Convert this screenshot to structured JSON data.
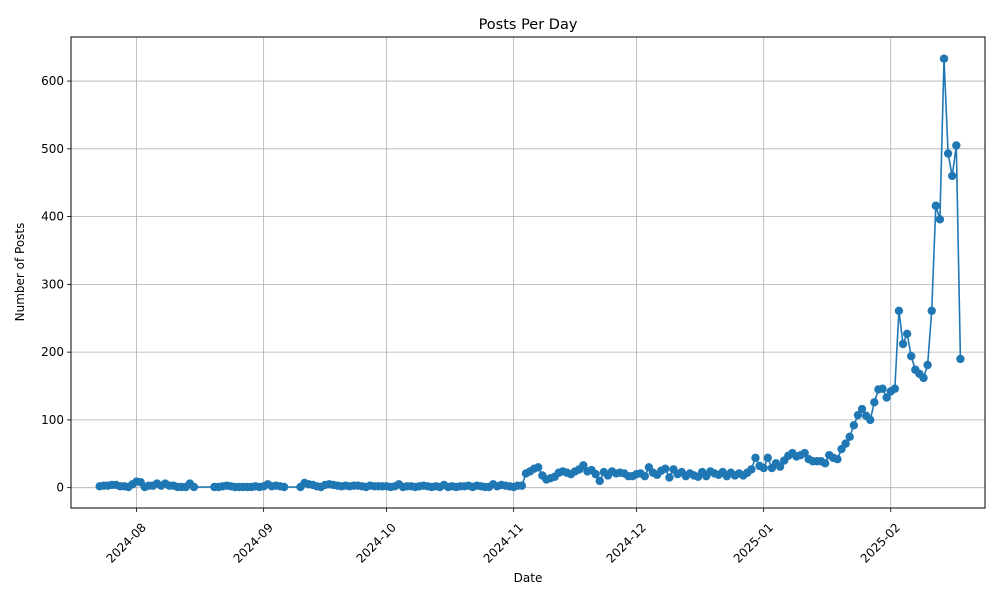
{
  "chart_data": {
    "type": "line",
    "title": "Posts Per Day",
    "xlabel": "Date",
    "ylabel": "Number of Posts",
    "xlim": [
      "2024-07-16",
      "2025-02-24"
    ],
    "ylim": [
      -30,
      665
    ],
    "grid": true,
    "x_tick_labels": [
      "2024-08",
      "2024-09",
      "2024-10",
      "2024-11",
      "2024-12",
      "2025-01",
      "2025-02"
    ],
    "x_tick_dates": [
      "2024-08-01",
      "2024-09-01",
      "2024-10-01",
      "2024-11-01",
      "2024-12-01",
      "2025-01-01",
      "2025-02-01"
    ],
    "y_ticks": [
      0,
      100,
      200,
      300,
      400,
      500,
      600
    ],
    "series": [
      {
        "color": "#1f77b4",
        "marker": "circle",
        "points": [
          [
            "2024-07-23",
            2
          ],
          [
            "2024-07-24",
            3
          ],
          [
            "2024-07-25",
            3
          ],
          [
            "2024-07-26",
            4
          ],
          [
            "2024-07-27",
            4
          ],
          [
            "2024-07-28",
            2
          ],
          [
            "2024-07-29",
            2
          ],
          [
            "2024-07-30",
            1
          ],
          [
            "2024-07-31",
            5
          ],
          [
            "2024-08-01",
            9
          ],
          [
            "2024-08-02",
            8
          ],
          [
            "2024-08-03",
            1
          ],
          [
            "2024-08-04",
            3
          ],
          [
            "2024-08-05",
            3
          ],
          [
            "2024-08-06",
            6
          ],
          [
            "2024-08-07",
            3
          ],
          [
            "2024-08-08",
            6
          ],
          [
            "2024-08-09",
            3
          ],
          [
            "2024-08-10",
            3
          ],
          [
            "2024-08-11",
            1
          ],
          [
            "2024-08-12",
            1
          ],
          [
            "2024-08-13",
            1
          ],
          [
            "2024-08-14",
            6
          ],
          [
            "2024-08-15",
            1
          ],
          [
            "2024-08-20",
            1
          ],
          [
            "2024-08-21",
            1
          ],
          [
            "2024-08-22",
            2
          ],
          [
            "2024-08-23",
            3
          ],
          [
            "2024-08-24",
            2
          ],
          [
            "2024-08-25",
            1
          ],
          [
            "2024-08-26",
            1
          ],
          [
            "2024-08-27",
            1
          ],
          [
            "2024-08-28",
            1
          ],
          [
            "2024-08-29",
            1
          ],
          [
            "2024-08-30",
            2
          ],
          [
            "2024-08-31",
            1
          ],
          [
            "2024-09-01",
            2
          ],
          [
            "2024-09-02",
            5
          ],
          [
            "2024-09-03",
            2
          ],
          [
            "2024-09-04",
            3
          ],
          [
            "2024-09-05",
            2
          ],
          [
            "2024-09-06",
            1
          ],
          [
            "2024-09-10",
            1
          ],
          [
            "2024-09-11",
            7
          ],
          [
            "2024-09-12",
            5
          ],
          [
            "2024-09-13",
            4
          ],
          [
            "2024-09-14",
            2
          ],
          [
            "2024-09-15",
            1
          ],
          [
            "2024-09-16",
            4
          ],
          [
            "2024-09-17",
            5
          ],
          [
            "2024-09-18",
            4
          ],
          [
            "2024-09-19",
            3
          ],
          [
            "2024-09-20",
            2
          ],
          [
            "2024-09-21",
            3
          ],
          [
            "2024-09-22",
            2
          ],
          [
            "2024-09-23",
            3
          ],
          [
            "2024-09-24",
            3
          ],
          [
            "2024-09-25",
            2
          ],
          [
            "2024-09-26",
            1
          ],
          [
            "2024-09-27",
            3
          ],
          [
            "2024-09-28",
            2
          ],
          [
            "2024-09-29",
            2
          ],
          [
            "2024-09-30",
            2
          ],
          [
            "2024-10-01",
            2
          ],
          [
            "2024-10-02",
            1
          ],
          [
            "2024-10-03",
            2
          ],
          [
            "2024-10-04",
            5
          ],
          [
            "2024-10-05",
            1
          ],
          [
            "2024-10-06",
            2
          ],
          [
            "2024-10-07",
            2
          ],
          [
            "2024-10-08",
            1
          ],
          [
            "2024-10-09",
            2
          ],
          [
            "2024-10-10",
            3
          ],
          [
            "2024-10-11",
            2
          ],
          [
            "2024-10-12",
            1
          ],
          [
            "2024-10-13",
            2
          ],
          [
            "2024-10-14",
            1
          ],
          [
            "2024-10-15",
            4
          ],
          [
            "2024-10-16",
            1
          ],
          [
            "2024-10-17",
            2
          ],
          [
            "2024-10-18",
            1
          ],
          [
            "2024-10-19",
            2
          ],
          [
            "2024-10-20",
            2
          ],
          [
            "2024-10-21",
            3
          ],
          [
            "2024-10-22",
            1
          ],
          [
            "2024-10-23",
            3
          ],
          [
            "2024-10-24",
            2
          ],
          [
            "2024-10-25",
            1
          ],
          [
            "2024-10-26",
            1
          ],
          [
            "2024-10-27",
            5
          ],
          [
            "2024-10-28",
            2
          ],
          [
            "2024-10-29",
            4
          ],
          [
            "2024-10-30",
            3
          ],
          [
            "2024-10-31",
            2
          ],
          [
            "2024-11-01",
            1
          ],
          [
            "2024-11-02",
            3
          ],
          [
            "2024-11-03",
            3
          ],
          [
            "2024-11-04",
            21
          ],
          [
            "2024-11-05",
            24
          ],
          [
            "2024-11-06",
            28
          ],
          [
            "2024-11-07",
            30
          ],
          [
            "2024-11-08",
            18
          ],
          [
            "2024-11-09",
            12
          ],
          [
            "2024-11-10",
            14
          ],
          [
            "2024-11-11",
            16
          ],
          [
            "2024-11-12",
            22
          ],
          [
            "2024-11-13",
            24
          ],
          [
            "2024-11-14",
            22
          ],
          [
            "2024-11-15",
            20
          ],
          [
            "2024-11-16",
            24
          ],
          [
            "2024-11-17",
            27
          ],
          [
            "2024-11-18",
            33
          ],
          [
            "2024-11-19",
            24
          ],
          [
            "2024-11-20",
            26
          ],
          [
            "2024-11-21",
            20
          ],
          [
            "2024-11-22",
            10
          ],
          [
            "2024-11-23",
            23
          ],
          [
            "2024-11-24",
            18
          ],
          [
            "2024-11-25",
            24
          ],
          [
            "2024-11-26",
            21
          ],
          [
            "2024-11-27",
            22
          ],
          [
            "2024-11-28",
            21
          ],
          [
            "2024-11-29",
            17
          ],
          [
            "2024-11-30",
            17
          ],
          [
            "2024-12-01",
            20
          ],
          [
            "2024-12-02",
            21
          ],
          [
            "2024-12-03",
            17
          ],
          [
            "2024-12-04",
            30
          ],
          [
            "2024-12-05",
            22
          ],
          [
            "2024-12-06",
            19
          ],
          [
            "2024-12-07",
            25
          ],
          [
            "2024-12-08",
            28
          ],
          [
            "2024-12-09",
            15
          ],
          [
            "2024-12-10",
            27
          ],
          [
            "2024-12-11",
            20
          ],
          [
            "2024-12-12",
            23
          ],
          [
            "2024-12-13",
            17
          ],
          [
            "2024-12-14",
            21
          ],
          [
            "2024-12-15",
            18
          ],
          [
            "2024-12-16",
            16
          ],
          [
            "2024-12-17",
            23
          ],
          [
            "2024-12-18",
            17
          ],
          [
            "2024-12-19",
            24
          ],
          [
            "2024-12-20",
            21
          ],
          [
            "2024-12-21",
            19
          ],
          [
            "2024-12-22",
            23
          ],
          [
            "2024-12-23",
            17
          ],
          [
            "2024-12-24",
            22
          ],
          [
            "2024-12-25",
            18
          ],
          [
            "2024-12-26",
            21
          ],
          [
            "2024-12-27",
            18
          ],
          [
            "2024-12-28",
            22
          ],
          [
            "2024-12-29",
            27
          ],
          [
            "2024-12-30",
            44
          ],
          [
            "2024-12-31",
            32
          ],
          [
            "2025-01-01",
            29
          ],
          [
            "2025-01-02",
            44
          ],
          [
            "2025-01-03",
            29
          ],
          [
            "2025-01-04",
            36
          ],
          [
            "2025-01-05",
            31
          ],
          [
            "2025-01-06",
            40
          ],
          [
            "2025-01-07",
            47
          ],
          [
            "2025-01-08",
            51
          ],
          [
            "2025-01-09",
            46
          ],
          [
            "2025-01-10",
            48
          ],
          [
            "2025-01-11",
            51
          ],
          [
            "2025-01-12",
            42
          ],
          [
            "2025-01-13",
            39
          ],
          [
            "2025-01-14",
            39
          ],
          [
            "2025-01-15",
            39
          ],
          [
            "2025-01-16",
            36
          ],
          [
            "2025-01-17",
            48
          ],
          [
            "2025-01-18",
            44
          ],
          [
            "2025-01-19",
            42
          ],
          [
            "2025-01-20",
            57
          ],
          [
            "2025-01-21",
            65
          ],
          [
            "2025-01-22",
            75
          ],
          [
            "2025-01-23",
            92
          ],
          [
            "2025-01-24",
            107
          ],
          [
            "2025-01-25",
            116
          ],
          [
            "2025-01-26",
            106
          ],
          [
            "2025-01-27",
            100
          ],
          [
            "2025-01-28",
            126
          ],
          [
            "2025-01-29",
            145
          ],
          [
            "2025-01-30",
            146
          ],
          [
            "2025-01-31",
            133
          ],
          [
            "2025-02-01",
            142
          ],
          [
            "2025-02-02",
            146
          ],
          [
            "2025-02-03",
            261
          ],
          [
            "2025-02-04",
            212
          ],
          [
            "2025-02-05",
            227
          ],
          [
            "2025-02-06",
            194
          ],
          [
            "2025-02-07",
            174
          ],
          [
            "2025-02-08",
            168
          ],
          [
            "2025-02-09",
            162
          ],
          [
            "2025-02-10",
            181
          ],
          [
            "2025-02-11",
            261
          ],
          [
            "2025-02-12",
            416
          ],
          [
            "2025-02-13",
            396
          ],
          [
            "2025-02-14",
            633
          ],
          [
            "2025-02-15",
            493
          ],
          [
            "2025-02-16",
            460
          ],
          [
            "2025-02-17",
            505
          ],
          [
            "2025-02-18",
            190
          ]
        ]
      }
    ]
  }
}
